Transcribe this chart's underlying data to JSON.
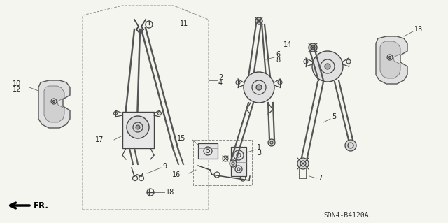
{
  "bg_color": "#f5f5f0",
  "line_color": "#444444",
  "label_color": "#222222",
  "diagram_ref": "SDN4-B4120A",
  "fig_width": 6.4,
  "fig_height": 3.19,
  "dpi": 100
}
